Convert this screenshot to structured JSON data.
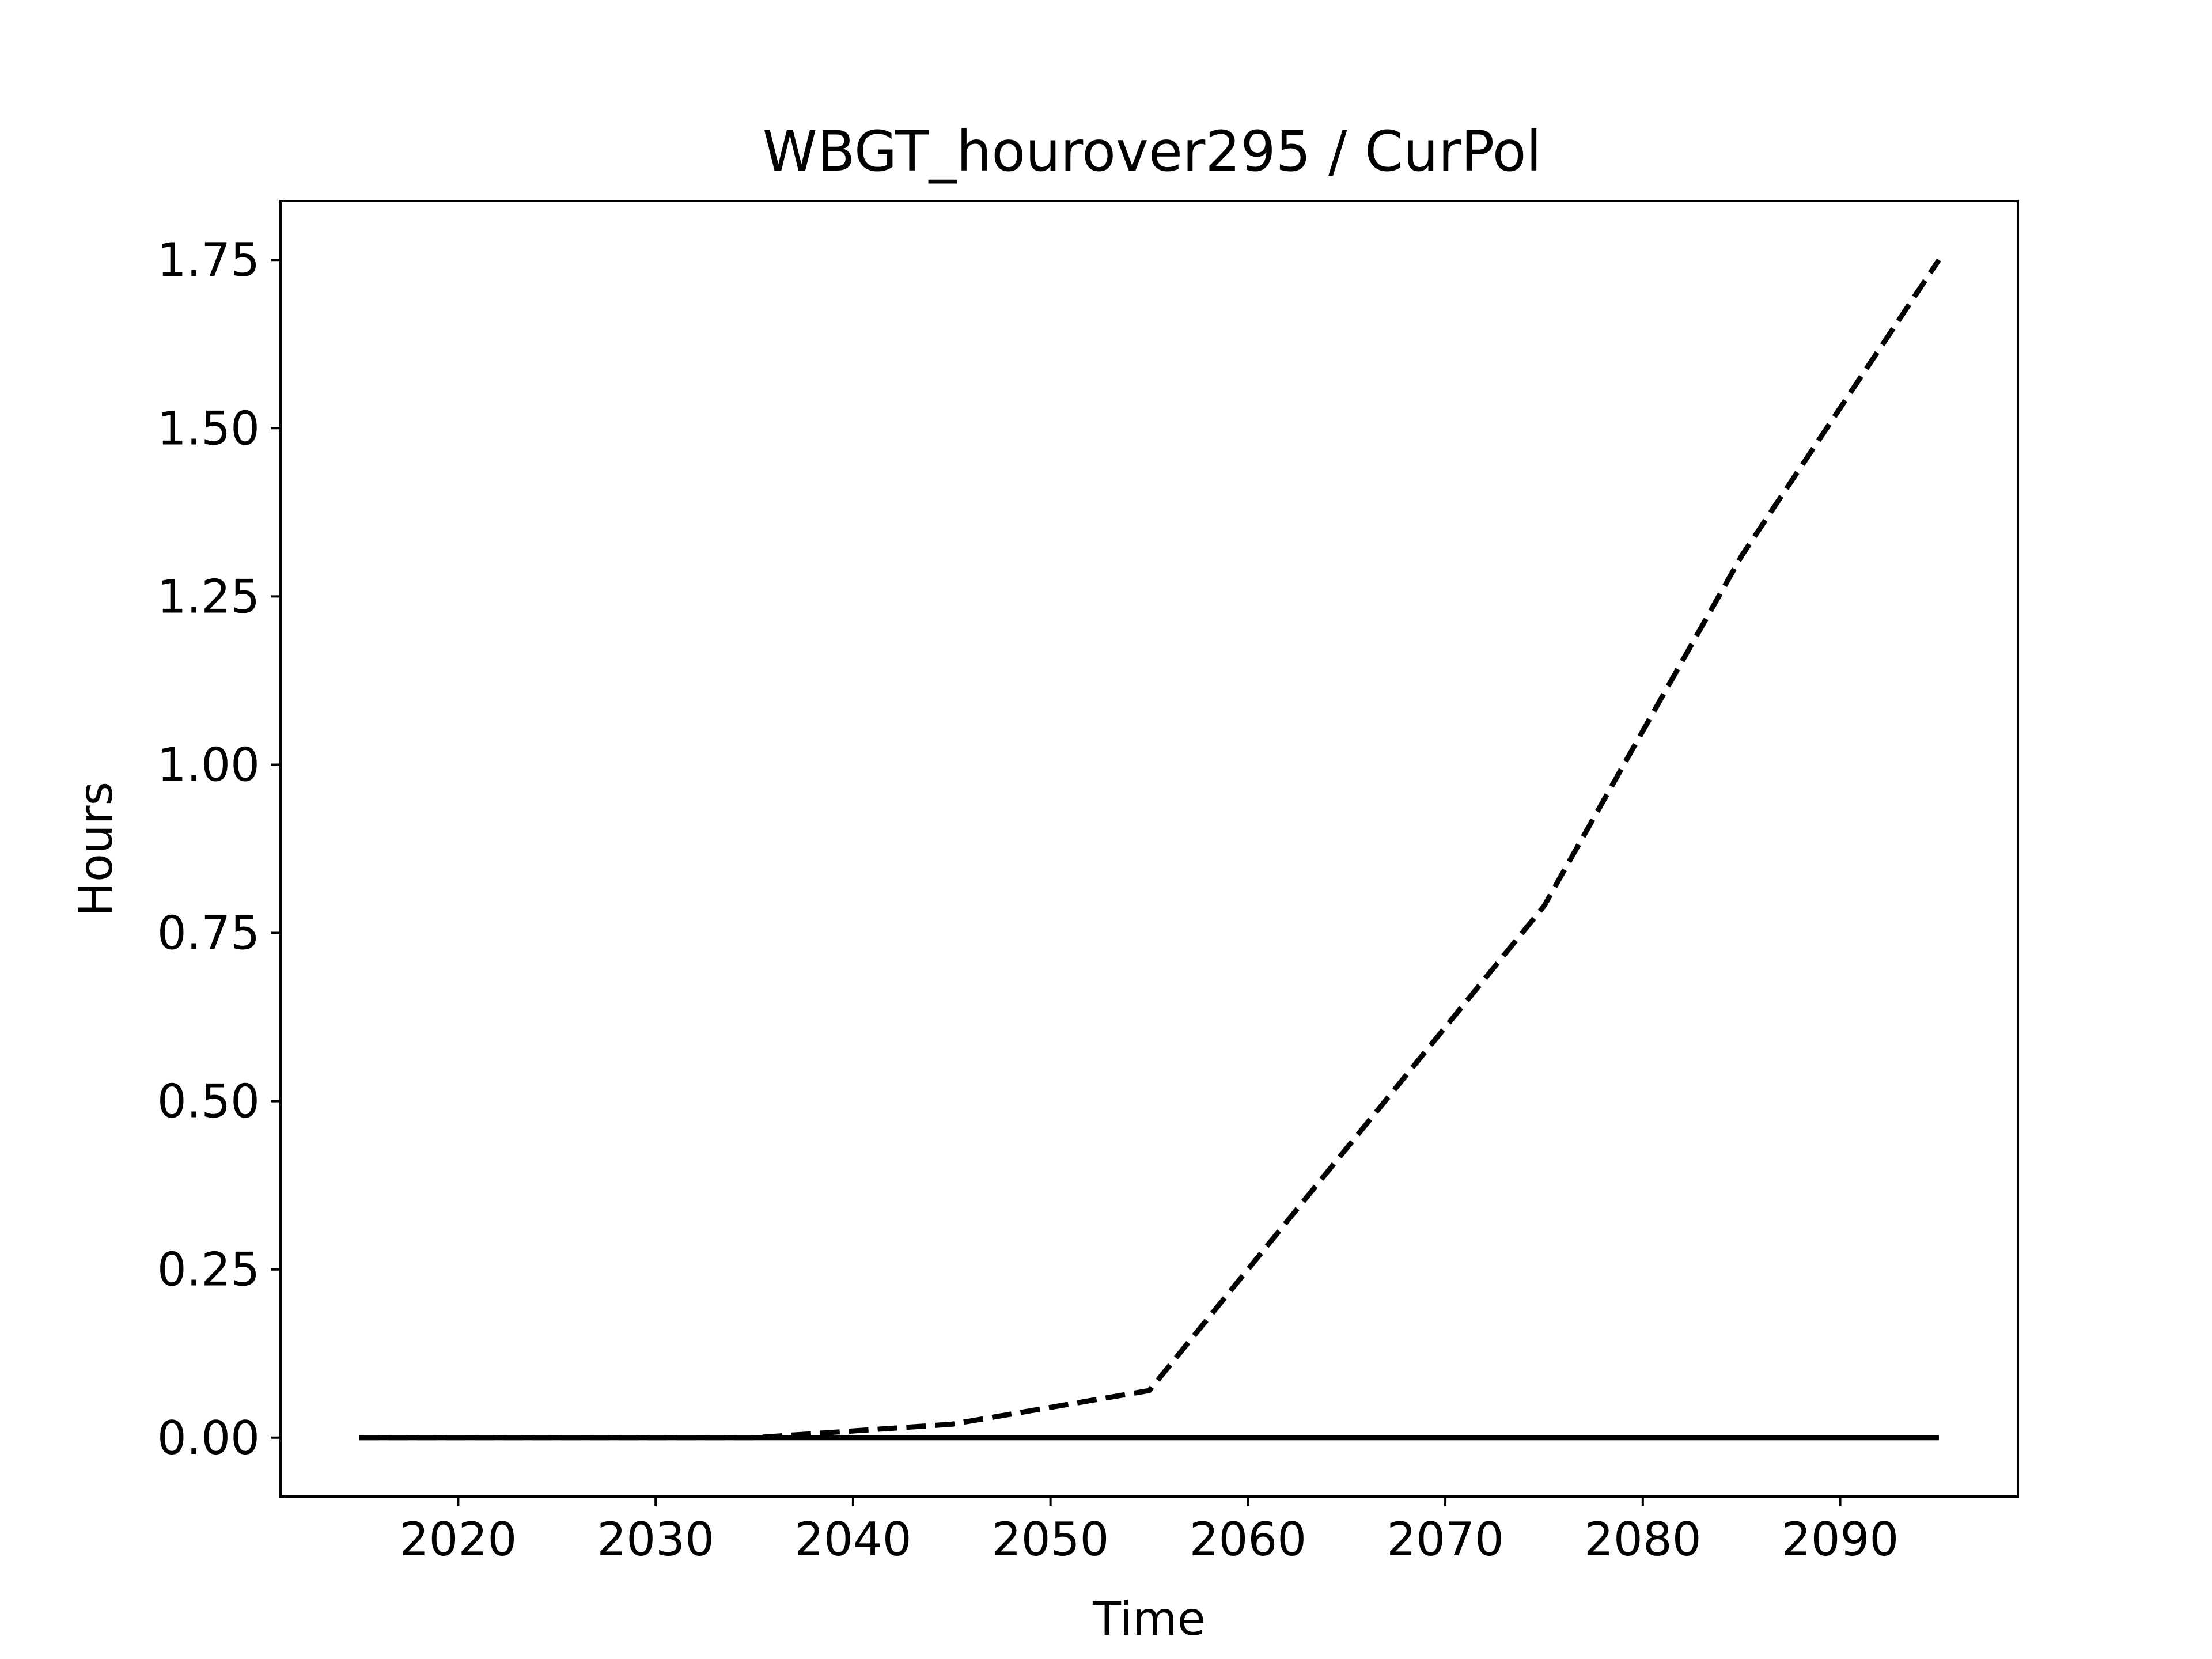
{
  "chart_data": {
    "type": "line",
    "title": "WBGT_hourover295 / CurPol",
    "xlabel": "Time",
    "ylabel": "Hours",
    "xlim": [
      2011,
      2099
    ],
    "ylim": [
      -0.0875,
      1.8375
    ],
    "xticks": [
      2020,
      2030,
      2040,
      2050,
      2060,
      2070,
      2080,
      2090
    ],
    "xtick_labels": [
      "2020",
      "2030",
      "2040",
      "2050",
      "2060",
      "2070",
      "2080",
      "2090"
    ],
    "yticks": [
      0.0,
      0.25,
      0.5,
      0.75,
      1.0,
      1.25,
      1.5,
      1.75
    ],
    "ytick_labels": [
      "0.00",
      "0.25",
      "0.50",
      "0.75",
      "1.00",
      "1.25",
      "1.50",
      "1.75"
    ],
    "x": [
      2015,
      2025,
      2035,
      2045,
      2055,
      2065,
      2075,
      2085,
      2095
    ],
    "series": [
      {
        "style": "dashed",
        "color": "#000000",
        "values": [
          0.0,
          0.0,
          0.0,
          0.02,
          0.07,
          0.43,
          0.79,
          1.31,
          1.75
        ]
      },
      {
        "style": "solid",
        "color": "#000000",
        "values": [
          0.0,
          0.0,
          0.0,
          0.0,
          0.0,
          0.0,
          0.0,
          0.0,
          0.0
        ]
      }
    ],
    "grid": false,
    "legend": "none"
  }
}
